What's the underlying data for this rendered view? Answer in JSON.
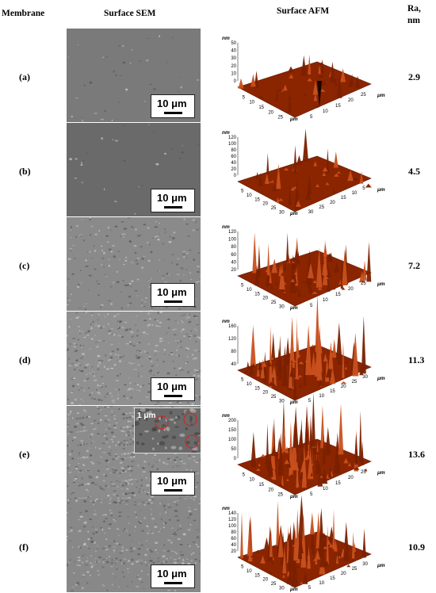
{
  "headers": {
    "membrane": "Membrane",
    "sem": "Surface SEM",
    "afm": "Surface AFM",
    "ra_line1": "Ra,",
    "ra_line2": "nm"
  },
  "scale_bar_label": "10 μm",
  "inset_label": "1 μm",
  "afm_units": {
    "z": "nm",
    "xy": "μm"
  },
  "colors": {
    "afm_surface": "#8B2500",
    "afm_highlight": "#C8501E",
    "sem_gray": "#808080"
  },
  "rows": [
    {
      "label": "(a)",
      "ra": "2.9",
      "z_ticks": [
        "50",
        "40",
        "30",
        "20",
        "10",
        "0"
      ],
      "x_ticks": [
        "5",
        "10",
        "15",
        "20",
        "25"
      ],
      "y_ticks": [
        "5",
        "10",
        "15",
        "20",
        "25"
      ],
      "z_unit": "nm",
      "xy_unit": "μm",
      "xy_unit2": "μm"
    },
    {
      "label": "(b)",
      "ra": "4.5",
      "z_ticks": [
        "120",
        "100",
        "80",
        "60",
        "40",
        "20",
        "0"
      ],
      "x_ticks": [
        "5",
        "10",
        "15",
        "20",
        "25",
        "30"
      ],
      "y_ticks": [
        "30",
        "25",
        "20",
        "15",
        "10",
        "5"
      ],
      "z_unit": "nm",
      "xy_unit": "μm",
      "xy_unit2": "μm"
    },
    {
      "label": "(c)",
      "ra": "7.2",
      "z_ticks": [
        "120",
        "100",
        "80",
        "60",
        "40",
        "20"
      ],
      "x_ticks": [
        "5",
        "10",
        "15",
        "20",
        "25",
        "30"
      ],
      "y_ticks": [
        "5",
        "10",
        "15",
        "20",
        "25"
      ],
      "z_unit": "nm",
      "xy_unit": "μm",
      "xy_unit2": "μm"
    },
    {
      "label": "(d)",
      "ra": "11.3",
      "z_ticks": [
        "160",
        "120",
        "80",
        "40"
      ],
      "x_ticks": [
        "5",
        "10",
        "15",
        "20",
        "25",
        "30"
      ],
      "y_ticks": [
        "5",
        "10",
        "15",
        "20",
        "25",
        "30"
      ],
      "z_unit": "nm",
      "xy_unit": "μm",
      "xy_unit2": "μm"
    },
    {
      "label": "(e)",
      "ra": "13.6",
      "z_ticks": [
        "200",
        "150",
        "100",
        "50",
        "0"
      ],
      "x_ticks": [
        "5",
        "10",
        "15",
        "20",
        "25"
      ],
      "y_ticks": [
        "5",
        "10",
        "15",
        "20",
        "25"
      ],
      "z_unit": "nm",
      "xy_unit": "μm",
      "xy_unit2": "μm"
    },
    {
      "label": "(f)",
      "ra": "10.9",
      "z_ticks": [
        "140",
        "120",
        "100",
        "80",
        "60",
        "40",
        "20"
      ],
      "x_ticks": [
        "5",
        "10",
        "15",
        "20",
        "25",
        "30"
      ],
      "y_ticks": [
        "5",
        "10",
        "15",
        "20",
        "25",
        "30"
      ],
      "z_unit": "nm",
      "xy_unit": "μm",
      "xy_unit2": "μm"
    }
  ]
}
